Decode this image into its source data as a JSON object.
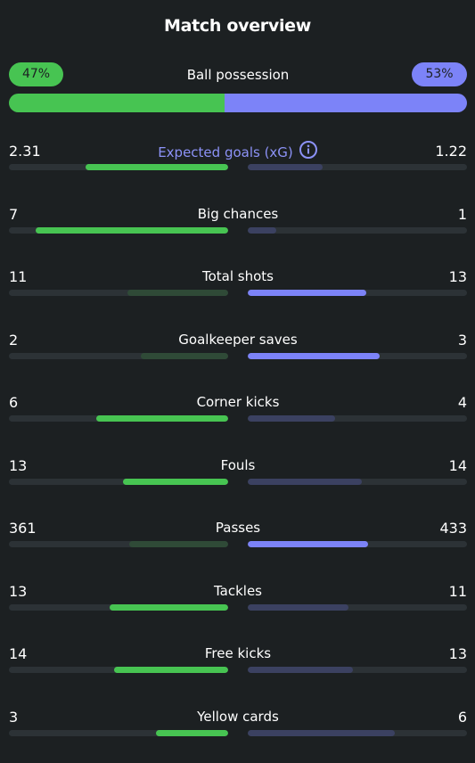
{
  "title": "Match overview",
  "colors": {
    "home": "#47c452",
    "away": "#7c83f8",
    "home_dim": "#2f4a37",
    "away_dim": "#3b4161",
    "track": "#2c3236",
    "xg_label": "#8c92f7"
  },
  "possession": {
    "label": "Ball possession",
    "home_pct": "47%",
    "away_pct": "53%",
    "home_value": 47,
    "away_value": 53
  },
  "stats": [
    {
      "label": "Expected goals (xG)",
      "home": "2.31",
      "away": "1.22",
      "home_fill": 0.65,
      "away_fill": 0.34,
      "home_bright": true,
      "away_bright": false,
      "info": true
    },
    {
      "label": "Big chances",
      "home": "7",
      "away": "1",
      "home_fill": 0.88,
      "away_fill": 0.13,
      "home_bright": true,
      "away_bright": false
    },
    {
      "label": "Total shots",
      "home": "11",
      "away": "13",
      "home_fill": 0.46,
      "away_fill": 0.54,
      "home_bright": false,
      "away_bright": true
    },
    {
      "label": "Goalkeeper saves",
      "home": "2",
      "away": "3",
      "home_fill": 0.4,
      "away_fill": 0.6,
      "home_bright": false,
      "away_bright": true
    },
    {
      "label": "Corner kicks",
      "home": "6",
      "away": "4",
      "home_fill": 0.6,
      "away_fill": 0.4,
      "home_bright": true,
      "away_bright": false
    },
    {
      "label": "Fouls",
      "home": "13",
      "away": "14",
      "home_fill": 0.48,
      "away_fill": 0.52,
      "home_bright": true,
      "away_bright": false
    },
    {
      "label": "Passes",
      "home": "361",
      "away": "433",
      "home_fill": 0.45,
      "away_fill": 0.55,
      "home_bright": false,
      "away_bright": true
    },
    {
      "label": "Tackles",
      "home": "13",
      "away": "11",
      "home_fill": 0.54,
      "away_fill": 0.46,
      "home_bright": true,
      "away_bright": false
    },
    {
      "label": "Free kicks",
      "home": "14",
      "away": "13",
      "home_fill": 0.52,
      "away_fill": 0.48,
      "home_bright": true,
      "away_bright": false
    },
    {
      "label": "Yellow cards",
      "home": "3",
      "away": "6",
      "home_fill": 0.33,
      "away_fill": 0.67,
      "home_bright": true,
      "away_bright": false
    }
  ]
}
